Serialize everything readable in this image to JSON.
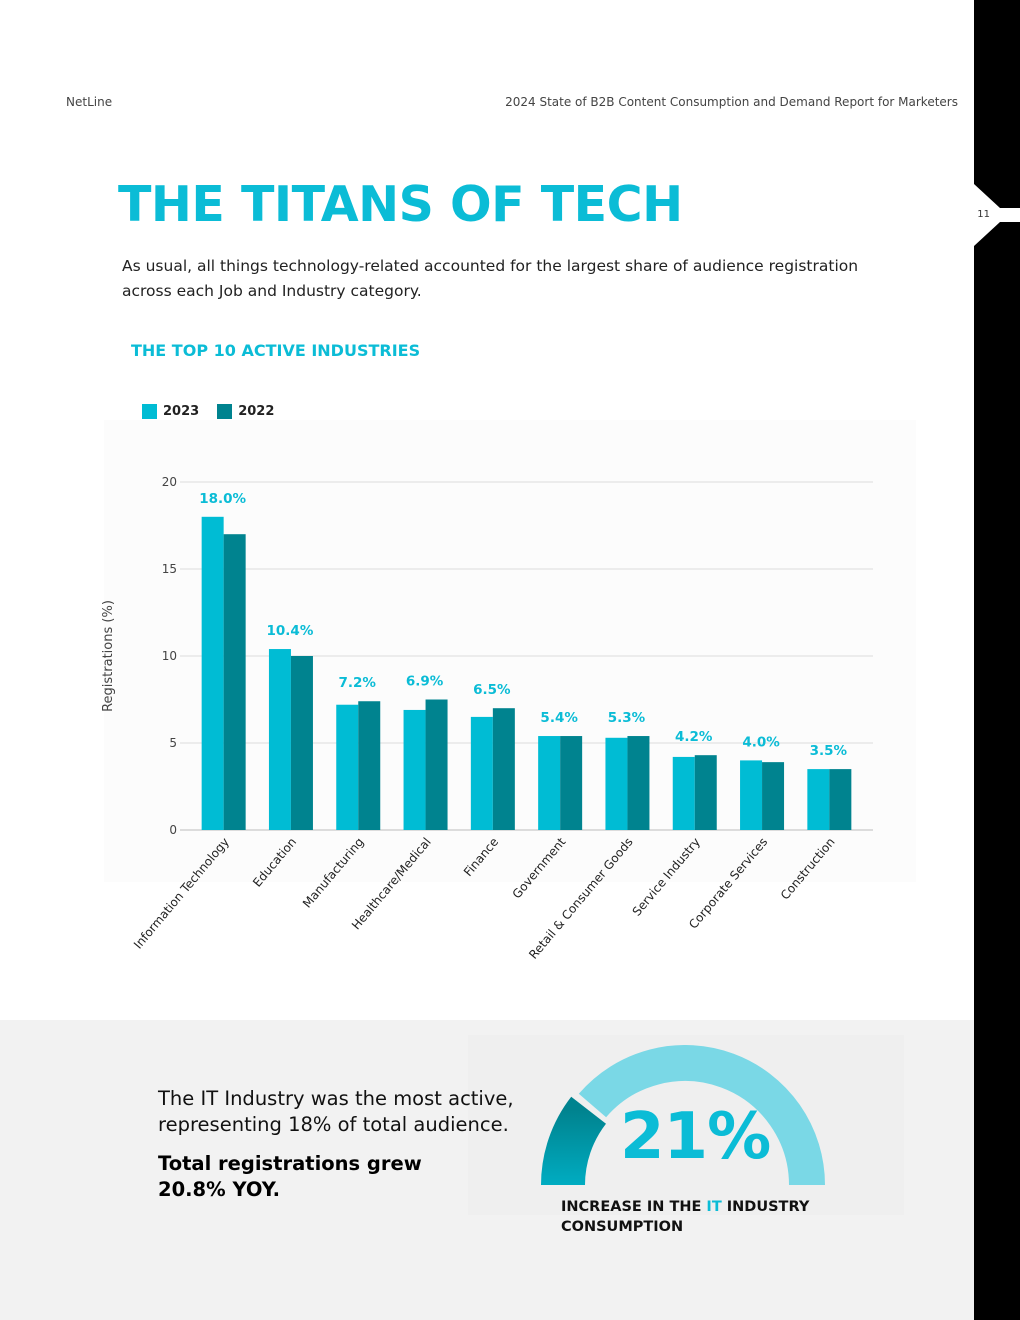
{
  "header": {
    "brand": "NetLine",
    "report_title": "2024 State of B2B Content Consumption and Demand Report for Marketers",
    "page_number": "11"
  },
  "title": "THE TITANS OF TECH",
  "intro": "As usual, all things technology-related accounted for the largest share of audience registration across each Job and Industry category.",
  "colors": {
    "accent": "#0bbcd6",
    "series_2023": "#00bcd4",
    "series_2022": "#00838f",
    "gauge_light": "#7ad8e6"
  },
  "chart_data": {
    "type": "bar",
    "title": "THE TOP 10 ACTIVE INDUSTRIES",
    "xlabel": "",
    "ylabel": "Registrations (%)",
    "ylim": [
      0,
      20
    ],
    "yticks": [
      0,
      5,
      10,
      15,
      20
    ],
    "grid": true,
    "legend_position": "top-left",
    "categories": [
      "Information Technology",
      "Education",
      "Manufacturing",
      "Healthcare/Medical",
      "Finance",
      "Government",
      "Retail & Consumer Goods",
      "Service Industry",
      "Corporate Services",
      "Construction"
    ],
    "series": [
      {
        "name": "2023",
        "color": "#00bcd4",
        "values": [
          18.0,
          10.4,
          7.2,
          6.9,
          6.5,
          5.4,
          5.3,
          4.2,
          4.0,
          3.5
        ]
      },
      {
        "name": "2022",
        "color": "#00838f",
        "values": [
          17.0,
          10.0,
          7.4,
          7.5,
          7.0,
          5.4,
          5.4,
          4.3,
          3.9,
          3.5
        ]
      }
    ],
    "data_labels": [
      "18.0%",
      "10.4%",
      "7.2%",
      "6.9%",
      "6.5%",
      "5.4%",
      "5.3%",
      "4.2%",
      "4.0%",
      "3.5%"
    ]
  },
  "stat": {
    "text": "The IT Industry was the most active, representing 18% of total audience.",
    "bold": "Total registrations grew 20.8% YOY."
  },
  "gauge": {
    "value": "21%",
    "value_fraction": 0.21,
    "caption_pre": "INCREASE IN THE ",
    "caption_highlight": "IT",
    "caption_post": " INDUSTRY CONSUMPTION"
  }
}
